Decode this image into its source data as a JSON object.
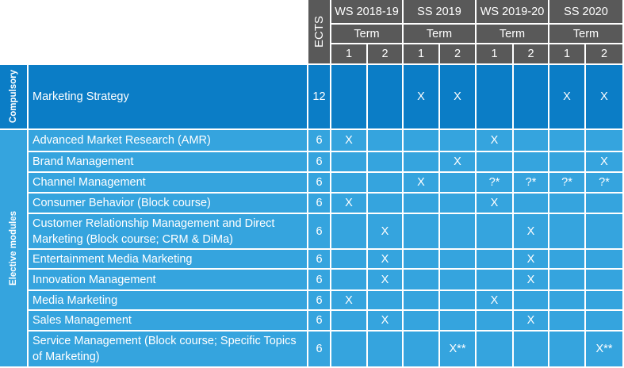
{
  "header": {
    "ects_label": "ECTS",
    "semesters": [
      "WS 2018-19",
      "SS 2019",
      "WS 2019-20",
      "SS 2020"
    ],
    "term_label": "Term",
    "term_numbers": [
      "1",
      "2",
      "1",
      "2",
      "1",
      "2",
      "1",
      "2"
    ]
  },
  "groups": {
    "compulsory": "Compulsory",
    "elective": "Elective modules"
  },
  "rows": [
    {
      "name": "Marketing Strategy",
      "ects": "12",
      "marks": [
        "",
        "",
        "X",
        "X",
        "",
        "",
        "X",
        "X"
      ]
    },
    {
      "name": "Advanced Market Research (AMR)",
      "ects": "6",
      "marks": [
        "X",
        "",
        "",
        "",
        "X",
        "",
        "",
        ""
      ]
    },
    {
      "name": "Brand Management",
      "ects": "6",
      "marks": [
        "",
        "",
        "",
        "X",
        "",
        "",
        "",
        "X"
      ]
    },
    {
      "name": "Channel Management",
      "ects": "6",
      "marks": [
        "",
        "",
        "X",
        "",
        "?*",
        "?*",
        "?*",
        "?*"
      ]
    },
    {
      "name": "Consumer Behavior (Block course)",
      "ects": "6",
      "marks": [
        "X",
        "",
        "",
        "",
        "X",
        "",
        "",
        ""
      ]
    },
    {
      "name": "Customer Relationship Management and Direct Marketing (Block course; CRM & DiMa)",
      "ects": "6",
      "marks": [
        "",
        "X",
        "",
        "",
        "",
        "X",
        "",
        ""
      ]
    },
    {
      "name": "Entertainment Media Marketing",
      "ects": "6",
      "marks": [
        "",
        "X",
        "",
        "",
        "",
        "X",
        "",
        ""
      ]
    },
    {
      "name": "Innovation Management",
      "ects": "6",
      "marks": [
        "",
        "X",
        "",
        "",
        "",
        "X",
        "",
        ""
      ]
    },
    {
      "name": "Media Marketing",
      "ects": "6",
      "marks": [
        "X",
        "",
        "",
        "",
        "X",
        "",
        "",
        ""
      ]
    },
    {
      "name": "Sales Management",
      "ects": "6",
      "marks": [
        "",
        "X",
        "",
        "",
        "",
        "X",
        "",
        ""
      ]
    },
    {
      "name": "Service Management (Block course; Specific Topics of Marketing)",
      "ects": "6",
      "marks": [
        "",
        "",
        "",
        "X**",
        "",
        "",
        "",
        "X**"
      ]
    }
  ],
  "colors": {
    "header_bg": "#595959",
    "compulsory_bg": "#0b7dc6",
    "elective_bg": "#35a4de"
  }
}
